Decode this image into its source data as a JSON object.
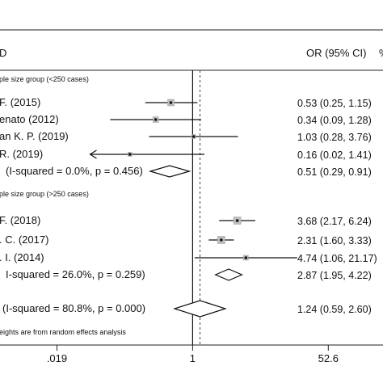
{
  "header": {
    "id_label": "D",
    "or_label": "OR (95% CI)",
    "weight_label": "%"
  },
  "chart_data": {
    "type": "forest",
    "scale": "log",
    "xlim": [
      0.0036,
      260
    ],
    "x_ticks": [
      {
        "value": 0.019,
        "label": ".019"
      },
      {
        "value": 1,
        "label": "1"
      },
      {
        "value": 52.6,
        "label": "52.6"
      }
    ],
    "null_line": 1,
    "pooled_line": 1.24,
    "groups": [
      {
        "title": "ple size group (<250 cases)",
        "studies": [
          {
            "label": "F. (2015)",
            "or": 0.53,
            "lo": 0.25,
            "hi": 1.15,
            "ci_text": "0.53 (0.25, 1.15)"
          },
          {
            "label": "enato (2012)",
            "or": 0.34,
            "lo": 0.09,
            "hi": 1.28,
            "ci_text": "0.34 (0.09, 1.28)"
          },
          {
            "label": "an K. P. (2019)",
            "or": 1.03,
            "lo": 0.28,
            "hi": 3.76,
            "ci_text": "1.03 (0.28, 3.76)"
          },
          {
            "label": "R. (2019)",
            "or": 0.16,
            "lo": 0.02,
            "hi": 1.41,
            "ci_text": "0.16 (0.02, 1.41)"
          }
        ],
        "subtotal": {
          "label": "(I-squared = 0.0%, p = 0.456)",
          "or": 0.51,
          "lo": 0.29,
          "hi": 0.91,
          "ci_text": "0.51 (0.29, 0.91)"
        }
      },
      {
        "title": "ple size group (>250 cases)",
        "studies": [
          {
            "label": "F. (2018)",
            "or": 3.68,
            "lo": 2.17,
            "hi": 6.24,
            "ci_text": "3.68 (2.17, 6.24)"
          },
          {
            "label": ". C. (2017)",
            "or": 2.31,
            "lo": 1.6,
            "hi": 3.33,
            "ci_text": "2.31 (1.60, 3.33)"
          },
          {
            "label": ". I. (2014)",
            "or": 4.74,
            "lo": 1.06,
            "hi": 21.17,
            "ci_text": "4.74 (1.06, 21.17)"
          }
        ],
        "subtotal": {
          "label": "I-squared = 26.0%, p = 0.259)",
          "or": 2.87,
          "lo": 1.95,
          "hi": 4.22,
          "ci_text": "2.87 (1.95, 4.22)"
        }
      }
    ],
    "overall": {
      "label": "(I-squared = 80.8%, p = 0.000)",
      "or": 1.24,
      "lo": 0.59,
      "hi": 2.6,
      "ci_text": "1.24 (0.59, 2.60)"
    },
    "footnote": "eights are from random effects analysis"
  }
}
